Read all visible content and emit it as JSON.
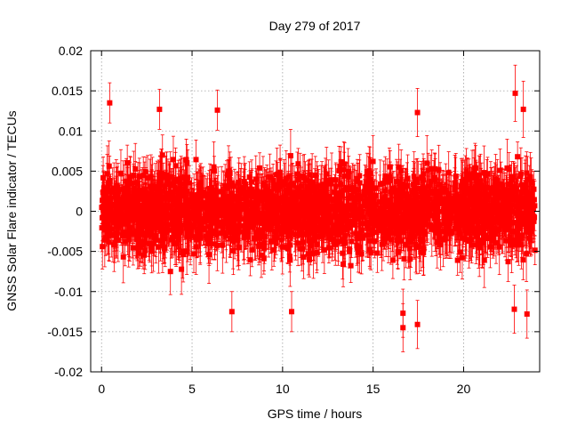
{
  "chart_data": {
    "type": "scatter",
    "title": "Day 279 of 2017",
    "xlabel": "GPS time / hours",
    "ylabel": "GNSS Solar Flare indicator / TECUs",
    "xlim": [
      -0.6,
      24.2
    ],
    "ylim": [
      -0.02,
      0.02
    ],
    "x_ticks": [
      0,
      5,
      10,
      15,
      20
    ],
    "x_tick_labels": [
      "0",
      "5",
      "10",
      "15",
      "20"
    ],
    "y_ticks": [
      -0.02,
      -0.015,
      -0.01,
      -0.005,
      0,
      0.005,
      0.01,
      0.015,
      0.02
    ],
    "y_tick_labels": [
      "-0.02",
      "-0.015",
      "-0.01",
      "-0.005",
      "0",
      "0.005",
      "0.01",
      "0.015",
      "0.02"
    ],
    "grid": true,
    "series_color": "#ff0000",
    "marker": "square",
    "error_bars": true,
    "x_range": [
      0,
      23.95
    ],
    "typical_spread": 0.0045,
    "typical_error": 0.003,
    "notable_points": [
      {
        "x": 0.45,
        "y": 0.0135,
        "err": 0.0025
      },
      {
        "x": 3.2,
        "y": 0.0127,
        "err": 0.0025
      },
      {
        "x": 6.4,
        "y": 0.0126,
        "err": 0.0025
      },
      {
        "x": 7.2,
        "y": -0.0125,
        "err": 0.0025
      },
      {
        "x": 10.5,
        "y": -0.0125,
        "err": 0.0025
      },
      {
        "x": 16.65,
        "y": -0.0145,
        "err": 0.003
      },
      {
        "x": 16.65,
        "y": -0.0127,
        "err": 0.003
      },
      {
        "x": 17.45,
        "y": 0.0123,
        "err": 0.003
      },
      {
        "x": 17.45,
        "y": -0.0141,
        "err": 0.003
      },
      {
        "x": 22.85,
        "y": 0.0147,
        "err": 0.0035
      },
      {
        "x": 23.3,
        "y": 0.0127,
        "err": 0.0035
      },
      {
        "x": 23.5,
        "y": -0.0128,
        "err": 0.003
      },
      {
        "x": 22.8,
        "y": -0.0122,
        "err": 0.003
      }
    ]
  }
}
